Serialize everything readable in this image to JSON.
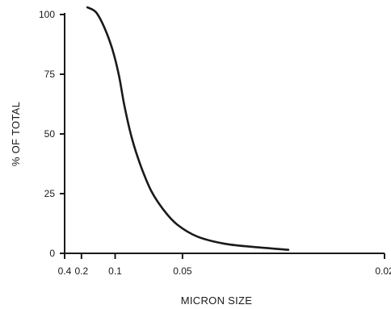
{
  "chart_data": {
    "type": "line",
    "title": "",
    "xlabel": "MICRON SIZE",
    "ylabel": "% OF TOTAL",
    "x_scale": "reciprocal",
    "x_reversed": true,
    "xlim": [
      0.4,
      0.02
    ],
    "ylim": [
      0,
      100
    ],
    "x_ticks": [
      0.4,
      0.2,
      0.1,
      0.05,
      0.02
    ],
    "x_tick_labels": [
      "0.4",
      "0.2",
      "0.1",
      "0.05",
      "0.02"
    ],
    "y_ticks": [
      0,
      25,
      50,
      75,
      100
    ],
    "y_tick_labels": [
      "0",
      "25",
      "50",
      "75",
      "100"
    ],
    "grid": false,
    "series": [
      {
        "values_x": [
          0.17,
          0.14,
          0.12,
          0.105,
          0.095,
          0.088,
          0.08,
          0.072,
          0.065,
          0.058,
          0.052,
          0.045,
          0.038,
          0.032,
          0.028
        ],
        "values_y": [
          103,
          101,
          95,
          86,
          75,
          62,
          48,
          36,
          26,
          18,
          12,
          7,
          4,
          2.5,
          1.5
        ]
      }
    ]
  },
  "colors": {
    "ink": "#1a1a1a",
    "background": "#ffffff"
  }
}
